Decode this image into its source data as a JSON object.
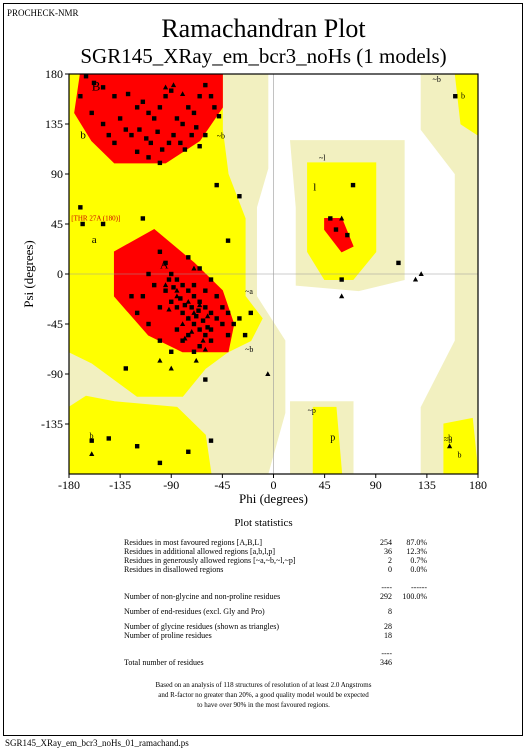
{
  "header": {
    "program": "PROCHECK-NMR",
    "title": "Ramachandran Plot",
    "subtitle": "SGR145_XRay_em_bcr3_noHs (1 models)",
    "footer": "SGR145_XRay_em_bcr3_noHs_01_ramachand.ps"
  },
  "colors": {
    "most_favoured": "#ff0000",
    "additional_allowed": "#ffff00",
    "generously_allowed": "#f2f0c0",
    "disallowed": "#ffffff",
    "residue_marker": "#000000"
  },
  "chart_data": {
    "type": "scatter",
    "title": "Ramachandran Plot",
    "xlabel": "Phi (degrees)",
    "ylabel": "Psi (degrees)",
    "xlim": [
      -180,
      180
    ],
    "ylim": [
      -180,
      180
    ],
    "x_ticks": [
      "-180",
      "-135",
      "-90",
      "-45",
      "0",
      "45",
      "90",
      "135",
      "180"
    ],
    "y_ticks": [
      "180",
      "135",
      "90",
      "45",
      "0",
      "-45",
      "-90",
      "-135"
    ],
    "region_labels": [
      "B",
      "b",
      "~b",
      "~b",
      "b",
      "A",
      "a",
      "~a",
      "~l",
      "l",
      "~b",
      "b",
      "~p",
      "p",
      "~b",
      "b",
      "~b"
    ],
    "outlier_label": "[THR 27A (180)]",
    "series": [
      {
        "marker": "square",
        "points": [
          [
            -165,
            178
          ],
          [
            -158,
            172
          ],
          [
            -150,
            168
          ],
          [
            -140,
            160
          ],
          [
            -128,
            162
          ],
          [
            -120,
            150
          ],
          [
            -115,
            155
          ],
          [
            -110,
            145
          ],
          [
            -105,
            140
          ],
          [
            -100,
            150
          ],
          [
            -95,
            160
          ],
          [
            -90,
            165
          ],
          [
            -85,
            140
          ],
          [
            -80,
            135
          ],
          [
            -75,
            150
          ],
          [
            -70,
            145
          ],
          [
            -65,
            160
          ],
          [
            -60,
            170
          ],
          [
            -135,
            140
          ],
          [
            -130,
            130
          ],
          [
            -125,
            125
          ],
          [
            -118,
            130
          ],
          [
            -112,
            122
          ],
          [
            -108,
            118
          ],
          [
            -102,
            128
          ],
          [
            -98,
            112
          ],
          [
            -92,
            118
          ],
          [
            -88,
            125
          ],
          [
            -82,
            118
          ],
          [
            -78,
            112
          ],
          [
            -72,
            125
          ],
          [
            -68,
            132
          ],
          [
            -140,
            118
          ],
          [
            -145,
            125
          ],
          [
            -150,
            135
          ],
          [
            -120,
            110
          ],
          [
            -110,
            105
          ],
          [
            -100,
            100
          ],
          [
            -160,
            145
          ],
          [
            -170,
            160
          ],
          [
            -55,
            160
          ],
          [
            -52,
            150
          ],
          [
            -48,
            142
          ],
          [
            -60,
            125
          ],
          [
            -65,
            115
          ],
          [
            -170,
            60
          ],
          [
            -168,
            45
          ],
          [
            -150,
            45
          ],
          [
            -115,
            50
          ],
          [
            -100,
            20
          ],
          [
            -95,
            10
          ],
          [
            -90,
            0
          ],
          [
            -85,
            -5
          ],
          [
            -80,
            -10
          ],
          [
            -75,
            -15
          ],
          [
            -70,
            -20
          ],
          [
            -65,
            -25
          ],
          [
            -60,
            -30
          ],
          [
            -55,
            -35
          ],
          [
            -50,
            -40
          ],
          [
            -45,
            -45
          ],
          [
            -95,
            -15
          ],
          [
            -90,
            -25
          ],
          [
            -85,
            -30
          ],
          [
            -80,
            -35
          ],
          [
            -75,
            -40
          ],
          [
            -70,
            -45
          ],
          [
            -65,
            -50
          ],
          [
            -60,
            -55
          ],
          [
            -55,
            -50
          ],
          [
            -100,
            -30
          ],
          [
            -105,
            -10
          ],
          [
            -110,
            0
          ],
          [
            -115,
            -20
          ],
          [
            -68,
            -38
          ],
          [
            -72,
            -30
          ],
          [
            -62,
            -42
          ],
          [
            -58,
            -48
          ],
          [
            -66,
            -33
          ],
          [
            -78,
            -28
          ],
          [
            -82,
            -22
          ],
          [
            -88,
            -12
          ],
          [
            -92,
            -5
          ],
          [
            -70,
            -10
          ],
          [
            -60,
            -15
          ],
          [
            -50,
            -20
          ],
          [
            -45,
            -30
          ],
          [
            -40,
            -35
          ],
          [
            -125,
            -20
          ],
          [
            -120,
            -35
          ],
          [
            -85,
            -50
          ],
          [
            -80,
            -60
          ],
          [
            -75,
            -55
          ],
          [
            -65,
            -65
          ],
          [
            -55,
            -60
          ],
          [
            -40,
            -55
          ],
          [
            -35,
            -45
          ],
          [
            -30,
            -40
          ],
          [
            -75,
            15
          ],
          [
            -65,
            5
          ],
          [
            -55,
            -5
          ],
          [
            -130,
            -85
          ],
          [
            -60,
            -95
          ],
          [
            -20,
            -35
          ],
          [
            -25,
            -55
          ],
          [
            -90,
            -70
          ],
          [
            -100,
            -60
          ],
          [
            -110,
            -45
          ],
          [
            55,
            40
          ],
          [
            65,
            35
          ],
          [
            50,
            50
          ],
          [
            70,
            80
          ],
          [
            60,
            -5
          ],
          [
            110,
            10
          ],
          [
            160,
            160
          ],
          [
            -160,
            -150
          ],
          [
            -145,
            -148
          ],
          [
            -100,
            -170
          ],
          [
            -75,
            -160
          ],
          [
            -55,
            -150
          ],
          [
            -120,
            -155
          ],
          [
            -30,
            70
          ],
          [
            -50,
            80
          ],
          [
            -40,
            30
          ],
          [
            -70,
            -70
          ]
        ]
      },
      {
        "marker": "triangle",
        "points": [
          [
            -95,
            168
          ],
          [
            -88,
            170
          ],
          [
            -80,
            162
          ],
          [
            -75,
            -40
          ],
          [
            -70,
            -35
          ],
          [
            -80,
            -45
          ],
          [
            -62,
            -60
          ],
          [
            -85,
            -20
          ],
          [
            -70,
            5
          ],
          [
            60,
            50
          ],
          [
            60,
            -20
          ],
          [
            130,
            0
          ],
          [
            155,
            -155
          ],
          [
            -5,
            -90
          ],
          [
            125,
            -5
          ],
          [
            -160,
            -162
          ],
          [
            -85,
            -15
          ],
          [
            -90,
            -85
          ],
          [
            -72,
            -52
          ],
          [
            -65,
            -28
          ],
          [
            -75,
            -25
          ],
          [
            -92,
            -32
          ],
          [
            -58,
            -38
          ],
          [
            -78,
            -58
          ],
          [
            -60,
            -68
          ],
          [
            -95,
            -10
          ],
          [
            -68,
            -78
          ],
          [
            -100,
            -78
          ]
        ]
      }
    ]
  },
  "stats": {
    "heading": "Plot statistics",
    "rows": [
      {
        "label": "Residues in most favoured regions  [A,B,L]",
        "count": "254",
        "pct": "87.0%"
      },
      {
        "label": "Residues in additional allowed regions  [a,b,l,p]",
        "count": "36",
        "pct": "12.3%"
      },
      {
        "label": "Residues in generously allowed regions  [~a,~b,~l,~p]",
        "count": "2",
        "pct": "0.7%"
      },
      {
        "label": "Residues in disallowed regions",
        "count": "0",
        "pct": "0.0%"
      }
    ],
    "separator": "----",
    "separator_pct": "------",
    "nongly_label": "Number of non-glycine and non-proline residues",
    "nongly_count": "292",
    "nongly_pct": "100.0%",
    "end_label": "Number of end-residues (excl. Gly and Pro)",
    "end_count": "8",
    "gly_label": "Number of glycine residues (shown as triangles)",
    "gly_count": "28",
    "pro_label": "Number of proline residues",
    "pro_count": "18",
    "separator2": "----",
    "total_label": "Total number of residues",
    "total_count": "346",
    "note_lines": [
      "Based on an analysis of 118 structures of resolution of at least 2.0 Angstroms",
      "and R-factor no greater than 20%, a good quality model would be expected",
      "to have over 90% in the most favoured regions."
    ]
  }
}
